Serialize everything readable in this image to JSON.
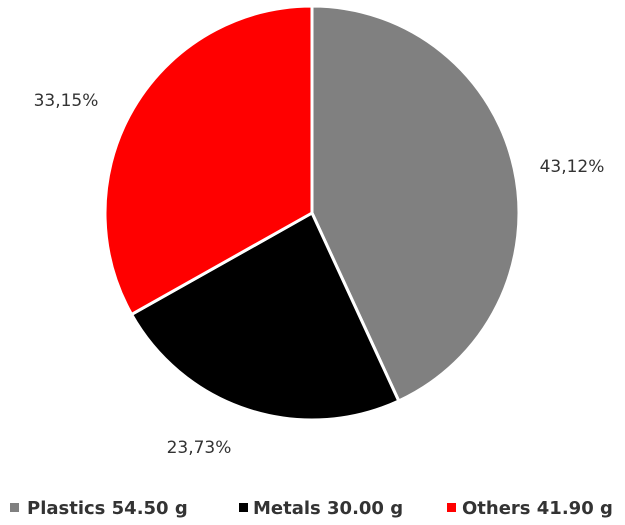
{
  "chart_data": {
    "type": "pie",
    "slices": [
      {
        "name": "Plastics",
        "legend_label": "Plastics 54.50 g",
        "value": 54.5,
        "percent_label": "43,12%",
        "color": "#808080"
      },
      {
        "name": "Metals",
        "legend_label": "Metals 30.00 g",
        "value": 30.0,
        "percent_label": "23,73%",
        "color": "#000000"
      },
      {
        "name": "Others",
        "legend_label": "Others 41.90 g",
        "value": 41.9,
        "percent_label": "33,15%",
        "color": "#ff0000"
      }
    ],
    "start_angle": "12 o'clock, clockwise",
    "slice_border_color": "#ffffff",
    "legend_position": "bottom"
  }
}
